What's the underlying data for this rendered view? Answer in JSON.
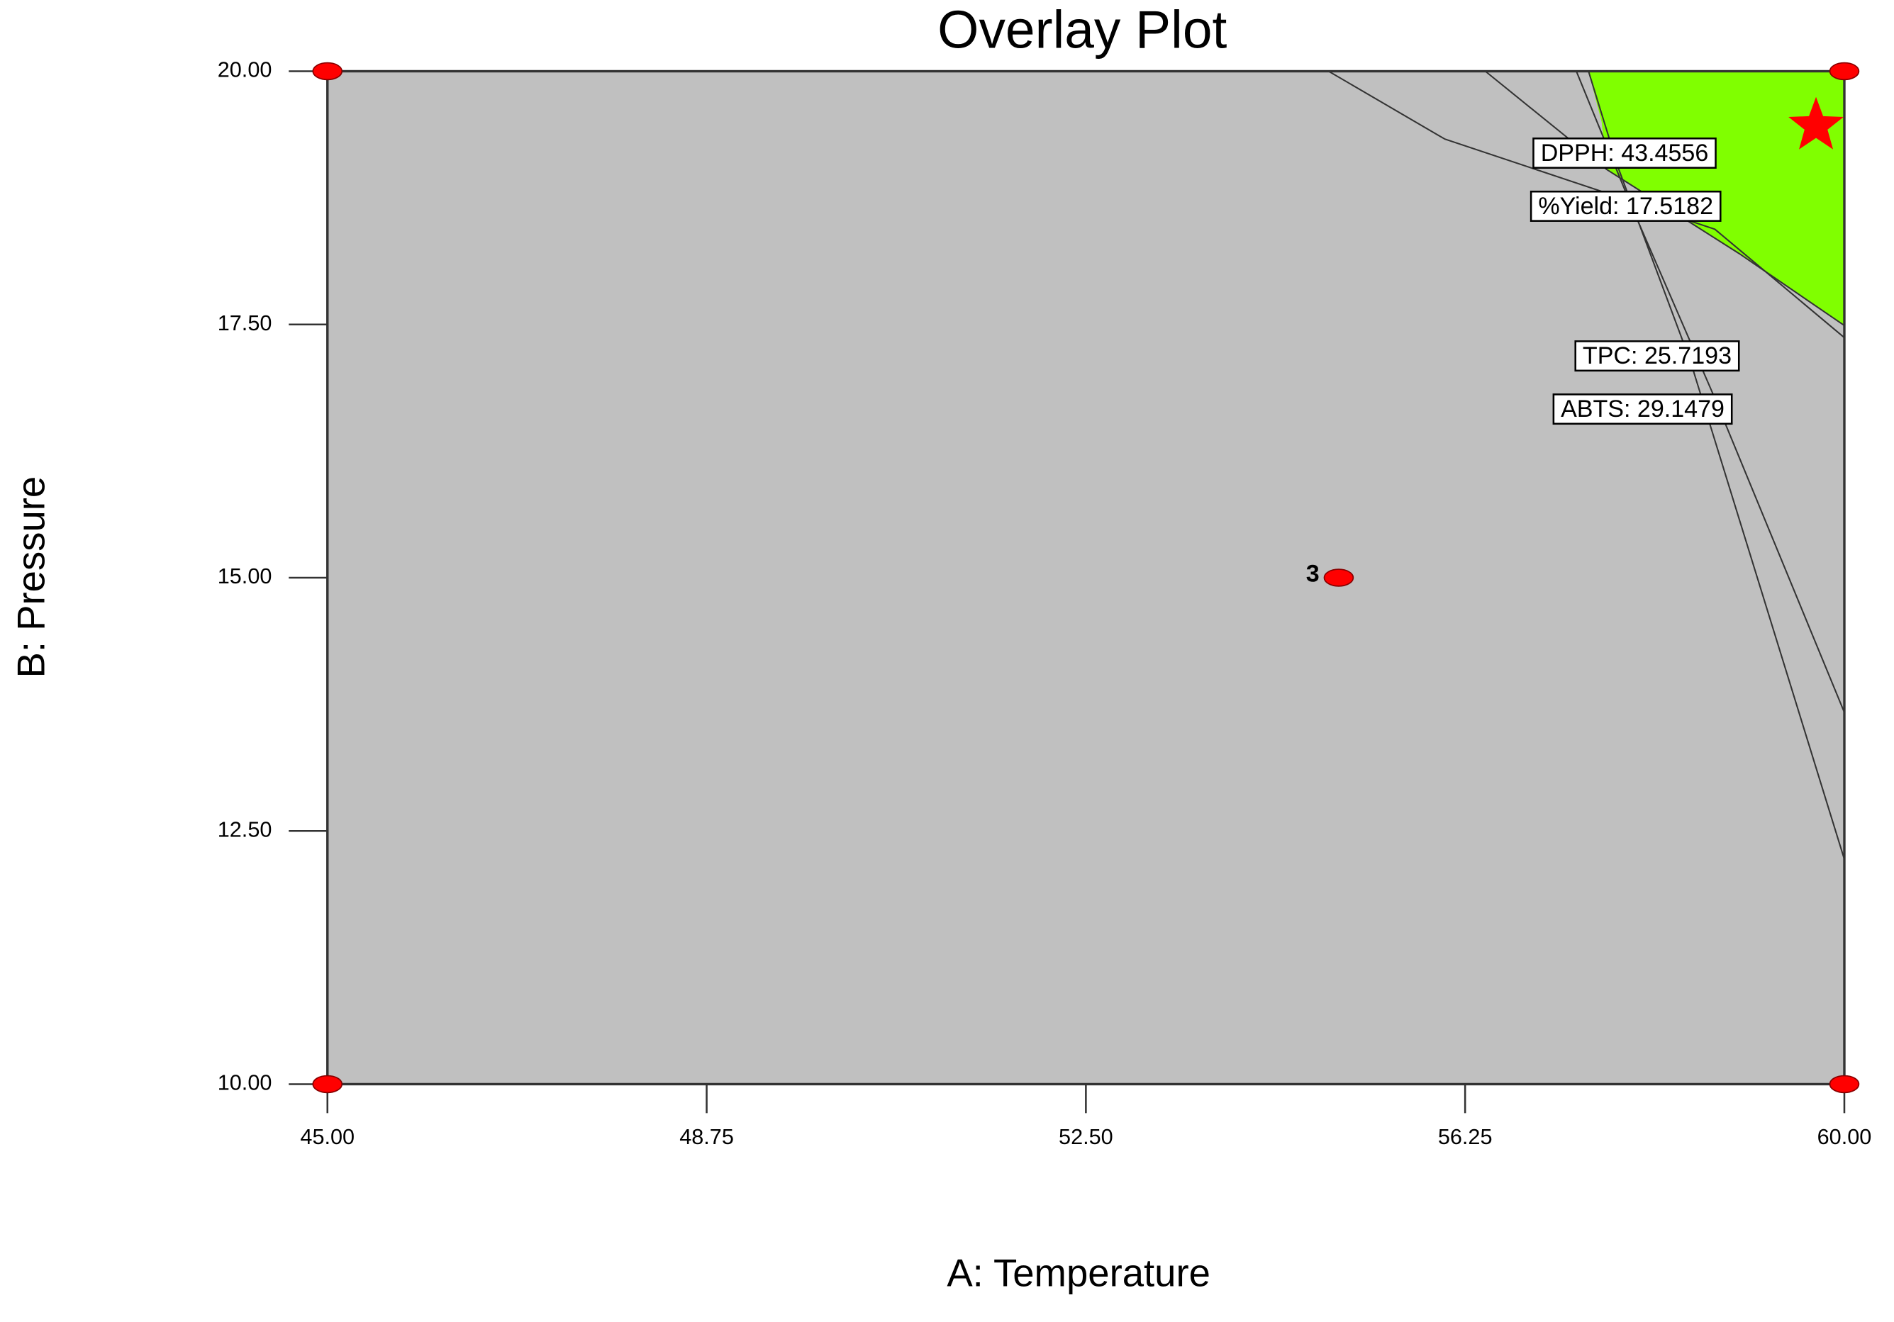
{
  "chart_data": {
    "type": "overlay",
    "title": "Overlay Plot",
    "x_label": "A: Temperature",
    "y_label": "B: Pressure",
    "xlim": [
      45,
      60
    ],
    "ylim": [
      10,
      20
    ],
    "xticks": [
      {
        "value": 45,
        "label": "45.00"
      },
      {
        "value": 48.75,
        "label": "48.75"
      },
      {
        "value": 52.5,
        "label": "52.50"
      },
      {
        "value": 56.25,
        "label": "56.25"
      },
      {
        "value": 60,
        "label": "60.00"
      }
    ],
    "yticks": [
      {
        "value": 10,
        "label": "10.00"
      },
      {
        "value": 12.5,
        "label": "12.50"
      },
      {
        "value": 15,
        "label": "15.00"
      },
      {
        "value": 17.5,
        "label": "17.50"
      },
      {
        "value": 20,
        "label": "20.00"
      }
    ],
    "background_color": "#c0c0c0",
    "feasible_region": {
      "color": "#80ff00",
      "x": [
        57.47,
        60,
        60,
        58.96,
        57.65,
        57.6
      ],
      "y": [
        20,
        20,
        17.49,
        18.2,
        19.03,
        19.5
      ]
    },
    "contours": [
      {
        "label": "DPPH: 43.4556",
        "x": [
          54.9,
          56.05,
          58.72,
          60
        ],
        "y": [
          20,
          19.33,
          18.44,
          17.37
        ]
      },
      {
        "label": "%Yield: 17.5182",
        "x": [
          56.45,
          57.65,
          58.96,
          60
        ],
        "y": [
          20,
          19.03,
          18.2,
          17.49
        ]
      },
      {
        "label": "TPC: 25.7193",
        "x": [
          57.35,
          57.89,
          58.72,
          60
        ],
        "y": [
          20,
          18.68,
          16.77,
          13.67
        ]
      },
      {
        "label": "ABTS: 29.1479",
        "x": [
          57.47,
          57.77,
          58.48,
          60
        ],
        "y": [
          20,
          19.03,
          17.13,
          12.22
        ]
      }
    ],
    "design_points": {
      "color": "#ff0000",
      "x": [
        45,
        60,
        45,
        60,
        55
      ],
      "y": [
        20,
        20,
        10,
        10,
        15
      ],
      "labels": [
        null,
        null,
        null,
        null,
        "3"
      ]
    },
    "optimum": {
      "color": "#ff0000",
      "x": 59.72,
      "y": 19.46
    }
  }
}
